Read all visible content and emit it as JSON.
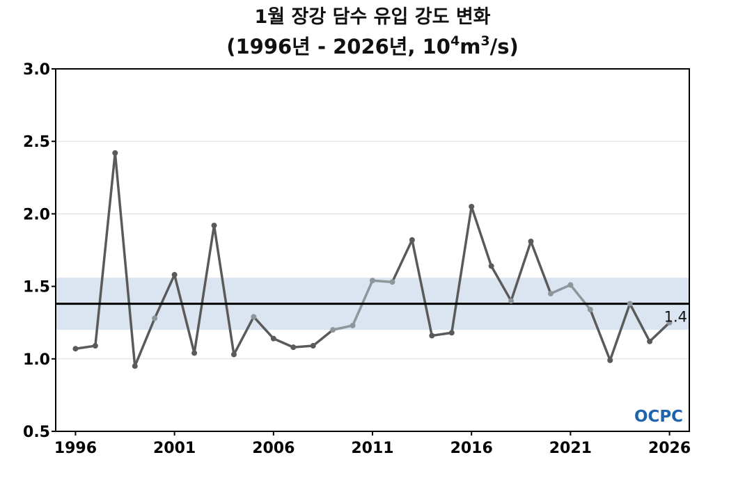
{
  "chart_data": {
    "type": "line",
    "title_line1": "1월 장강 담수 유입 강도 변화",
    "title_line2_prefix": "(1996년 - 2026년, 10",
    "title_sup1": "4",
    "title_mid": "m",
    "title_sup2": "3",
    "title_suffix": "/s)",
    "x": [
      1996,
      1997,
      1998,
      1999,
      2000,
      2001,
      2002,
      2003,
      2004,
      2005,
      2006,
      2007,
      2008,
      2009,
      2010,
      2011,
      2012,
      2013,
      2014,
      2015,
      2016,
      2017,
      2018,
      2019,
      2020,
      2021,
      2022,
      2023,
      2024,
      2025,
      2026
    ],
    "values": [
      1.07,
      1.09,
      2.42,
      0.95,
      1.28,
      1.58,
      1.04,
      1.92,
      1.03,
      1.29,
      1.14,
      1.08,
      1.09,
      1.2,
      1.23,
      1.54,
      1.53,
      1.82,
      1.16,
      1.18,
      2.05,
      1.64,
      1.4,
      1.81,
      1.45,
      1.51,
      1.34,
      0.99,
      1.38,
      1.12,
      1.25
    ],
    "xlim": [
      1995,
      2027
    ],
    "ylim": [
      0.5,
      3.0
    ],
    "xticks": [
      1996,
      2001,
      2006,
      2011,
      2016,
      2021,
      2026
    ],
    "yticks": [
      "0.5",
      "1.0",
      "1.5",
      "2.0",
      "2.5",
      "3.0"
    ],
    "mean": 1.38,
    "mean_label": "1.4",
    "band": [
      1.2,
      1.56
    ],
    "grid": "horizontal",
    "colors": {
      "line_dark": "#5a5a5a",
      "line_light": "#8e959b",
      "band": "#dbe5f1",
      "mean_line": "#000000",
      "grid": "#dcdcdc"
    }
  },
  "logo": {
    "text": "OCPC"
  }
}
